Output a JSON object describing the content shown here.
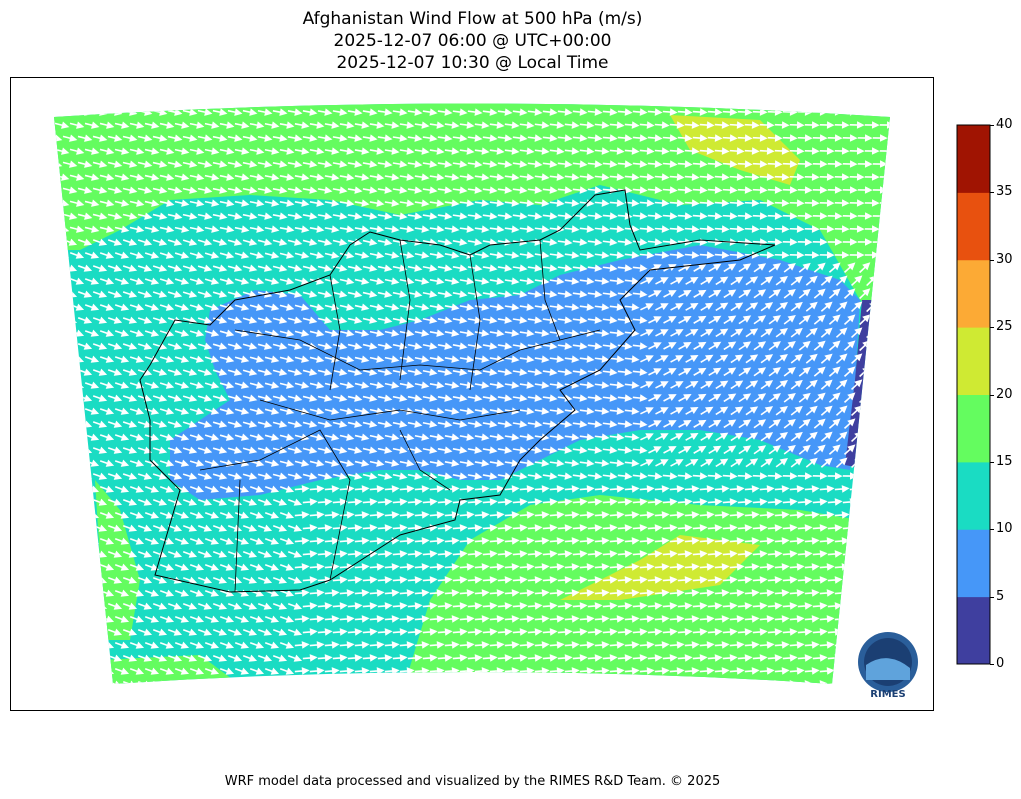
{
  "title": {
    "line1": "Afghanistan Wind Flow at 500 hPa (m/s)",
    "line2": "2025-12-07 06:00 @ UTC+00:00",
    "line3": "2025-12-07 10:30 @ Local Time"
  },
  "colorbar": {
    "ticks": [
      "0",
      "5",
      "10",
      "15",
      "20",
      "25",
      "30",
      "35",
      "40"
    ],
    "range": [
      0,
      40
    ],
    "colors": [
      "#3f3f9f",
      "#4697f8",
      "#1adcc3",
      "#64fc5f",
      "#cfea33",
      "#fcaa35",
      "#e8510f",
      "#a01402"
    ]
  },
  "map": {
    "background_color": "#1adcc3",
    "arrow_color": "#ffffff",
    "boundary_color": "#000000"
  },
  "logo": {
    "text": "RIMES"
  },
  "footer": "WRF model data processed and visualized by the RIMES R&D Team. © 2025"
}
